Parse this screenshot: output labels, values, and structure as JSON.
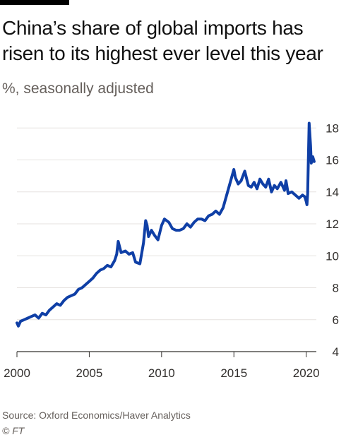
{
  "header": {
    "title": "China’s share of global imports has risen to its highest ever level this year",
    "subtitle": "%, seasonally adjusted"
  },
  "footer": {
    "source": "Source: Oxford Economics/Haver Analytics",
    "credit": "© FT"
  },
  "colors": {
    "line": "#0f3fa6",
    "grid": "#e6e2df",
    "axis": "#33302e",
    "text": "#33302e"
  },
  "chart_data": {
    "type": "line",
    "title": "China’s share of global imports has risen to its highest ever level this year",
    "subtitle": "%, seasonally adjusted",
    "xlabel": "",
    "ylabel": "",
    "xlim": [
      2000,
      2020.7
    ],
    "ylim": [
      4,
      18.5
    ],
    "x_ticks": [
      2000,
      2005,
      2010,
      2015,
      2020
    ],
    "y_ticks": [
      4,
      6,
      8,
      10,
      12,
      14,
      16,
      18
    ],
    "y_axis_side": "right",
    "grid": "horizontal",
    "legend": "none",
    "series": [
      {
        "x": [
          2000.0,
          2000.1,
          2000.25,
          2000.5,
          2000.75,
          2001.0,
          2001.25,
          2001.5,
          2001.75,
          2002.0,
          2002.25,
          2002.5,
          2002.75,
          2003.0,
          2003.25,
          2003.5,
          2003.75,
          2004.0,
          2004.25,
          2004.5,
          2004.75,
          2005.0,
          2005.25,
          2005.5,
          2005.75,
          2006.0,
          2006.25,
          2006.5,
          2006.75,
          2006.9,
          2007.0,
          2007.2,
          2007.5,
          2007.75,
          2008.0,
          2008.2,
          2008.5,
          2008.75,
          2008.9,
          2009.0,
          2009.1,
          2009.3,
          2009.5,
          2009.75,
          2010.0,
          2010.2,
          2010.5,
          2010.75,
          2011.0,
          2011.25,
          2011.5,
          2011.75,
          2012.0,
          2012.25,
          2012.5,
          2012.75,
          2013.0,
          2013.25,
          2013.5,
          2013.75,
          2014.0,
          2014.25,
          2014.5,
          2014.75,
          2015.0,
          2015.1,
          2015.3,
          2015.5,
          2015.75,
          2016.0,
          2016.2,
          2016.4,
          2016.6,
          2016.8,
          2017.0,
          2017.2,
          2017.4,
          2017.6,
          2017.8,
          2018.0,
          2018.25,
          2018.5,
          2018.6,
          2018.75,
          2019.0,
          2019.25,
          2019.5,
          2019.75,
          2019.9,
          2020.0,
          2020.05,
          2020.1,
          2020.2,
          2020.3,
          2020.35,
          2020.45,
          2020.55
        ],
        "values": [
          5.8,
          5.6,
          5.9,
          6.0,
          6.1,
          6.2,
          6.3,
          6.1,
          6.4,
          6.3,
          6.6,
          6.8,
          7.0,
          6.9,
          7.2,
          7.4,
          7.5,
          7.6,
          7.9,
          8.0,
          8.2,
          8.4,
          8.6,
          8.9,
          9.1,
          9.2,
          9.4,
          9.3,
          9.7,
          10.1,
          10.9,
          10.2,
          10.3,
          10.1,
          10.2,
          9.6,
          9.5,
          10.8,
          12.2,
          11.9,
          11.2,
          11.6,
          11.3,
          11.0,
          11.9,
          12.3,
          12.1,
          11.7,
          11.6,
          11.6,
          11.7,
          12.0,
          11.8,
          12.1,
          12.3,
          12.3,
          12.2,
          12.5,
          12.6,
          12.8,
          12.6,
          13.0,
          13.8,
          14.6,
          15.4,
          14.9,
          14.5,
          14.7,
          15.3,
          14.4,
          14.3,
          14.6,
          14.2,
          14.8,
          14.5,
          14.3,
          14.8,
          14.0,
          14.4,
          14.2,
          14.6,
          14.1,
          14.7,
          13.9,
          14.0,
          13.8,
          13.6,
          13.8,
          13.7,
          13.4,
          13.2,
          13.9,
          18.3,
          16.9,
          15.8,
          16.2,
          15.9
        ]
      }
    ]
  }
}
